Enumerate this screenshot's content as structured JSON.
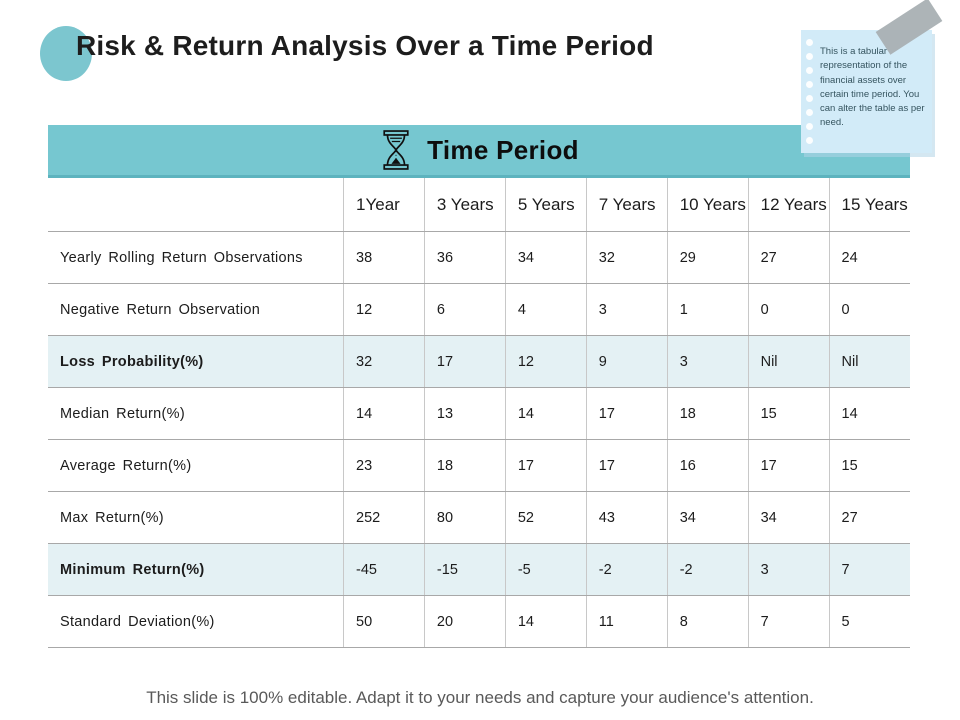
{
  "title": "Risk & Return Analysis Over a Time Period",
  "sticky_note": {
    "text": "This is a tabular representation of the financial assets over certain time period. You can alter the table as per need."
  },
  "banner": {
    "icon": "hourglass-icon",
    "label": "Time Period"
  },
  "table": {
    "columns": [
      "1Year",
      "3 Years",
      "5 Years",
      "7 Years",
      "10 Years",
      "12 Years",
      "15 Years"
    ],
    "rows": [
      {
        "label": "Yearly Rolling Return Observations",
        "values": [
          "38",
          "36",
          "34",
          "32",
          "29",
          "27",
          "24"
        ],
        "highlight": false,
        "bold": false
      },
      {
        "label": "Negative Return Observation",
        "values": [
          "12",
          "6",
          "4",
          "3",
          "1",
          "0",
          "0"
        ],
        "highlight": false,
        "bold": false
      },
      {
        "label": "Loss Probability(%)",
        "values": [
          "32",
          "17",
          "12",
          "9",
          "3",
          "Nil",
          "Nil"
        ],
        "highlight": true,
        "bold": true
      },
      {
        "label": "Median Return(%)",
        "values": [
          "14",
          "13",
          "14",
          "17",
          "18",
          "15",
          "14"
        ],
        "highlight": false,
        "bold": false
      },
      {
        "label": "Average Return(%)",
        "values": [
          "23",
          "18",
          "17",
          "17",
          "16",
          "17",
          "15"
        ],
        "highlight": false,
        "bold": false
      },
      {
        "label": "Max Return(%)",
        "values": [
          "252",
          "80",
          "52",
          "43",
          "34",
          "34",
          "27"
        ],
        "highlight": false,
        "bold": false
      },
      {
        "label": "Minimum Return(%)",
        "values": [
          "-45",
          "-15",
          "-5",
          "-2",
          "-2",
          "3",
          "7"
        ],
        "highlight": true,
        "bold": true
      },
      {
        "label": "Standard Deviation(%)",
        "values": [
          "50",
          "20",
          "14",
          "11",
          "8",
          "7",
          "5"
        ],
        "highlight": false,
        "bold": false
      }
    ]
  },
  "footer": {
    "text": "This slide is 100% editable. Adapt it to your needs and capture your audience's attention."
  },
  "colors": {
    "accent_teal": "#76c7d0",
    "banner_border": "#5db3be",
    "highlight_row": "#e4f1f4",
    "note_background": "#d2ebf8",
    "tape_gray": "#a9b0b3",
    "footer_text": "#595959"
  }
}
